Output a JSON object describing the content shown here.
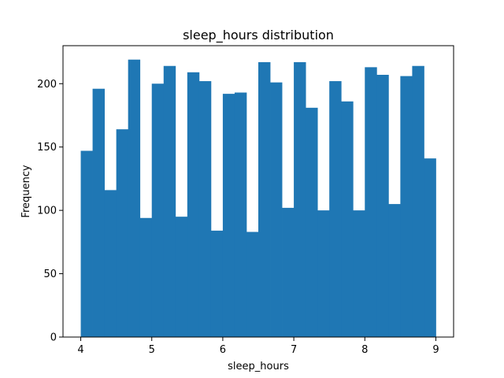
{
  "chart_data": {
    "type": "bar",
    "title": "sleep_hours distribution",
    "xlabel": "sleep_hours",
    "ylabel": "Frequency",
    "xlim": [
      3.75,
      9.25
    ],
    "ylim": [
      0,
      230
    ],
    "x_ticks": [
      4,
      5,
      6,
      7,
      8,
      9
    ],
    "y_ticks": [
      0,
      50,
      100,
      150,
      200
    ],
    "bin_edges": [
      4.0,
      4.1667,
      4.3333,
      4.5,
      4.6667,
      4.8333,
      5.0,
      5.1667,
      5.3333,
      5.5,
      5.6667,
      5.8333,
      6.0,
      6.1667,
      6.3333,
      6.5,
      6.6667,
      6.8333,
      7.0,
      7.1667,
      7.3333,
      7.5,
      7.6667,
      7.8333,
      8.0,
      8.1667,
      8.3333,
      8.5,
      8.6667,
      8.8333,
      9.0
    ],
    "values": [
      147,
      196,
      116,
      164,
      219,
      94,
      200,
      214,
      95,
      209,
      202,
      84,
      192,
      193,
      83,
      217,
      201,
      102,
      217,
      181,
      100,
      202,
      186,
      100,
      213,
      207,
      105,
      206,
      214,
      141
    ],
    "bar_color": "#1f77b4",
    "grid": false,
    "legend": "none"
  }
}
